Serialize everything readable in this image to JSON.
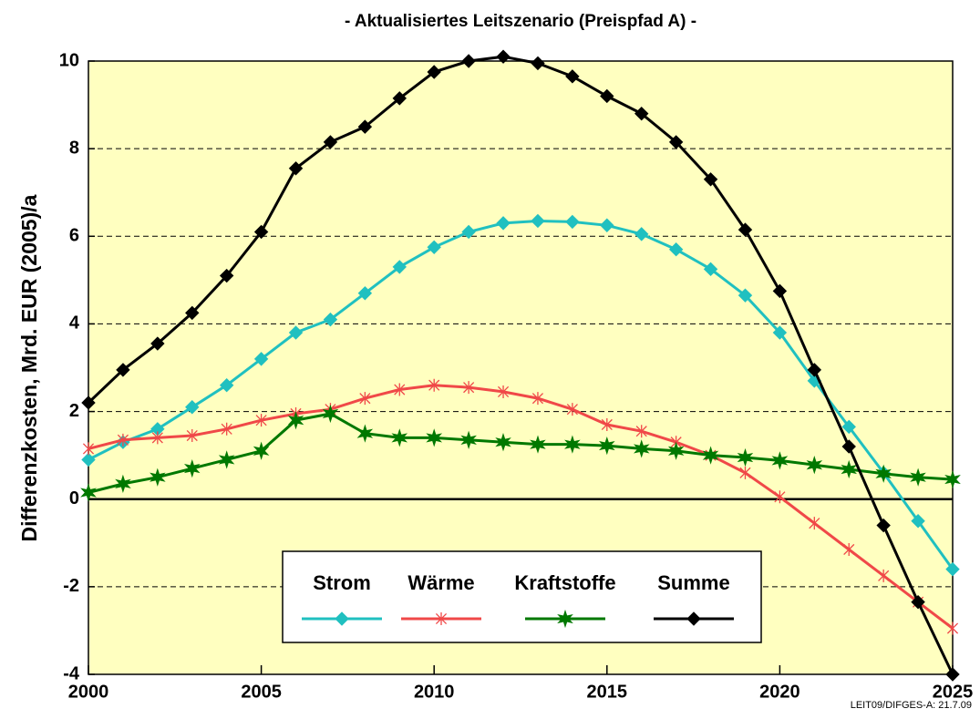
{
  "chart_data": {
    "type": "line",
    "title": "- Aktualisiertes Leitszenario  (Preispfad A) -",
    "y_label": "Differenzkosten, Mrd. EUR (2005)/a",
    "footnote": "LEIT09/DIFGES-A: 21.7.09",
    "x": [
      2000,
      2001,
      2002,
      2003,
      2004,
      2005,
      2006,
      2007,
      2008,
      2009,
      2010,
      2011,
      2012,
      2013,
      2014,
      2015,
      2016,
      2017,
      2018,
      2019,
      2020,
      2021,
      2022,
      2023,
      2024,
      2025
    ],
    "series": [
      {
        "name": "Strom",
        "color": "#20c0c0",
        "marker": "diamond",
        "values": [
          0.9,
          1.3,
          1.6,
          2.1,
          2.6,
          3.2,
          3.8,
          4.1,
          4.7,
          5.3,
          5.75,
          6.1,
          6.3,
          6.35,
          6.33,
          6.25,
          6.05,
          5.7,
          5.25,
          4.65,
          3.8,
          2.7,
          1.65,
          0.6,
          -0.5,
          -1.6
        ]
      },
      {
        "name": "Wärme",
        "color": "#f04848",
        "marker": "asterisk",
        "values": [
          1.15,
          1.35,
          1.4,
          1.45,
          1.6,
          1.8,
          1.95,
          2.05,
          2.3,
          2.5,
          2.6,
          2.55,
          2.45,
          2.3,
          2.05,
          1.7,
          1.55,
          1.3,
          1.0,
          0.6,
          0.05,
          -0.55,
          -1.15,
          -1.75,
          -2.35,
          -2.95
        ]
      },
      {
        "name": "Kraftstoffe",
        "color": "#007800",
        "marker": "star",
        "values": [
          0.15,
          0.35,
          0.5,
          0.7,
          0.9,
          1.1,
          1.8,
          1.95,
          1.5,
          1.4,
          1.4,
          1.35,
          1.3,
          1.25,
          1.25,
          1.22,
          1.15,
          1.1,
          1.0,
          0.95,
          0.88,
          0.78,
          0.68,
          0.58,
          0.5,
          0.45
        ]
      },
      {
        "name": "Summe",
        "color": "#000000",
        "marker": "diamond",
        "values": [
          2.2,
          2.95,
          3.55,
          4.25,
          5.1,
          6.1,
          7.55,
          8.15,
          8.5,
          9.15,
          9.75,
          10.0,
          10.1,
          9.95,
          9.65,
          9.2,
          8.8,
          8.15,
          7.3,
          6.15,
          4.75,
          2.95,
          1.2,
          -0.6,
          -2.35,
          -4.0
        ]
      }
    ],
    "xlim": [
      2000,
      2025
    ],
    "xticks": [
      2000,
      2005,
      2010,
      2015,
      2020,
      2025
    ],
    "ylim": [
      -4,
      10
    ],
    "yticks": [
      -4,
      -2,
      0,
      2,
      4,
      6,
      8,
      10
    ],
    "grid": true,
    "background": "#ffffc0"
  }
}
